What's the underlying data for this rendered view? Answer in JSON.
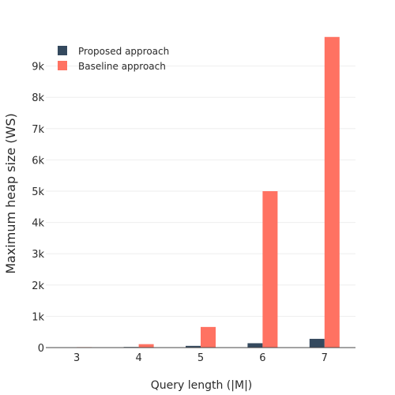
{
  "chart_data": {
    "type": "bar",
    "categories": [
      "3",
      "4",
      "5",
      "6",
      "7"
    ],
    "series": [
      {
        "name": "Proposed approach",
        "color": "#34495e",
        "values": [
          8,
          20,
          55,
          140,
          280
        ]
      },
      {
        "name": "Baseline approach",
        "color": "#ff7262",
        "values": [
          15,
          110,
          660,
          5000,
          9930
        ]
      }
    ],
    "xlabel": "Query length (|M|)",
    "ylabel": "Maximum heap size (WS)",
    "ylim": [
      0,
      10000
    ],
    "yticks": [
      0,
      1000,
      2000,
      3000,
      4000,
      5000,
      6000,
      7000,
      8000,
      9000
    ],
    "ytick_labels": [
      "0",
      "1k",
      "2k",
      "3k",
      "4k",
      "5k",
      "6k",
      "7k",
      "8k",
      "9k"
    ],
    "grid": true,
    "legend_position": "top-left"
  }
}
